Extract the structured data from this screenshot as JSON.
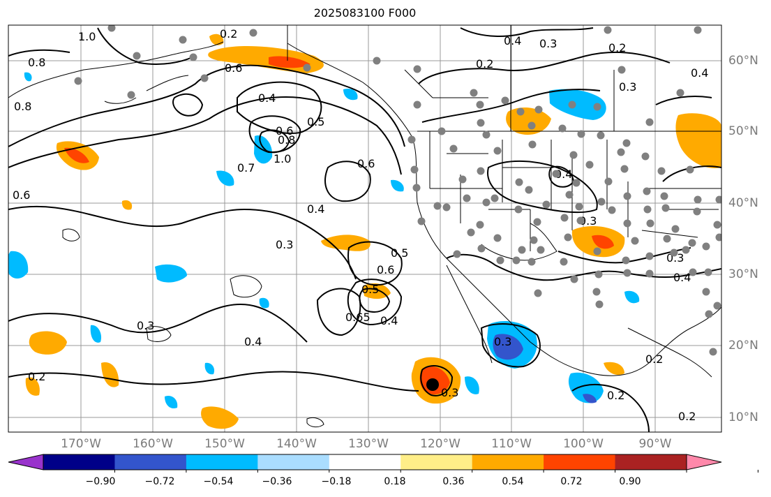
{
  "title": "2025083100 F000",
  "lon_labels": [
    "170°W",
    "160°W",
    "150°W",
    "140°W",
    "130°W",
    "120°W",
    "110°W",
    "100°W",
    "90°W"
  ],
  "lat_labels": [
    "60°N",
    "50°N",
    "40°N",
    "30°N",
    "20°N",
    "10°N"
  ],
  "colorbar": {
    "ticks": [
      "−0.90",
      "−0.72",
      "−0.54",
      "−0.36",
      "−0.18",
      "0.18",
      "0.36",
      "0.54",
      "0.72",
      "0.90"
    ],
    "colors": [
      "#9933cc",
      "#000088",
      "#3355cc",
      "#00bbff",
      "#aaddff",
      "#ffffff",
      "#ffee88",
      "#ffaa00",
      "#ff4400",
      "#aa2222",
      "#ff88aa"
    ]
  },
  "contour_labels": [
    "0.2",
    "0.4",
    "0.3",
    "0.2",
    "0.6",
    "0.4",
    "0.5",
    "0.6",
    "0.8",
    "1.0",
    "0.7",
    "0.6",
    "0.4",
    "0.3",
    "0.5",
    "0.6",
    "0.5",
    "0.4",
    "0.65",
    "0.3",
    "0.4",
    "0.3",
    "0.2",
    "0.3",
    "0.2",
    "0.4",
    "0.3",
    "0.4",
    "0.3",
    "0.2",
    "0.2",
    "0.8",
    "0.8",
    "1.0",
    "0.6",
    "0.4",
    "0.3",
    "0.2"
  ],
  "colors": {
    "land_border": "#000000",
    "grid": "#999999",
    "station": "#808080",
    "storm": "#000000"
  }
}
